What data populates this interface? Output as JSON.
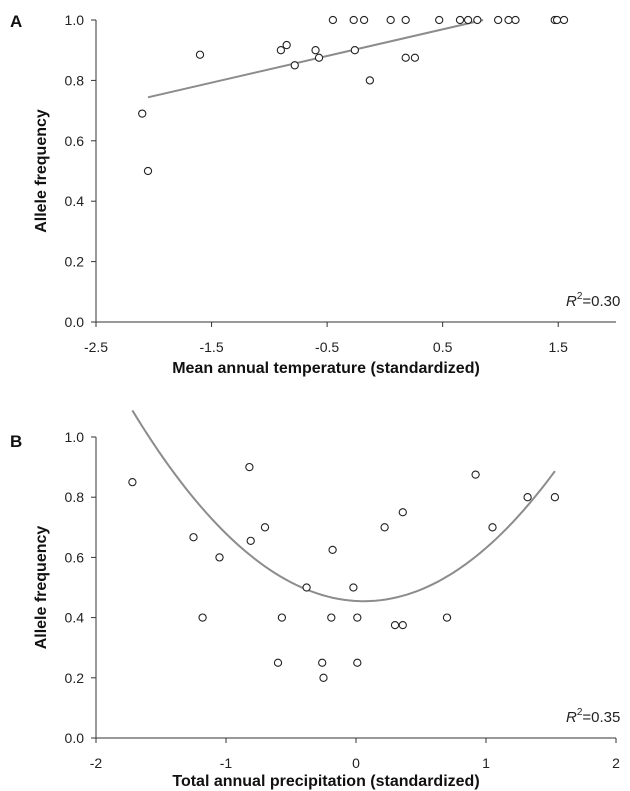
{
  "chart_data": [
    {
      "panel": "A",
      "type": "scatter",
      "xlabel": "Mean annual temperature (standardized)",
      "ylabel": "Allele frequency",
      "xlim": [
        -2.5,
        2.0
      ],
      "ylim": [
        0.0,
        1.0
      ],
      "xticks": [
        -2.5,
        -1.5,
        -0.5,
        0.5,
        1.5
      ],
      "xtick_labels": [
        "-2.5",
        "-1.5",
        "-0.5",
        "0.5",
        "1.5"
      ],
      "yticks": [
        0.0,
        0.2,
        0.4,
        0.6,
        0.8,
        1.0
      ],
      "ytick_labels": [
        "0.0",
        "0.2",
        "0.4",
        "0.6",
        "0.8",
        "1.0"
      ],
      "annotation": {
        "r": "R",
        "sup": "2",
        "value": "=0.30"
      },
      "trendline": {
        "kind": "linear",
        "x": [
          -2.05,
          0.85
        ],
        "y": [
          0.744,
          1.0
        ]
      },
      "points": [
        {
          "x": -2.1,
          "y": 0.69
        },
        {
          "x": -2.05,
          "y": 0.5
        },
        {
          "x": -1.6,
          "y": 0.885
        },
        {
          "x": -0.9,
          "y": 0.9
        },
        {
          "x": -0.85,
          "y": 0.917
        },
        {
          "x": -0.78,
          "y": 0.85
        },
        {
          "x": -0.6,
          "y": 0.9
        },
        {
          "x": -0.57,
          "y": 0.875
        },
        {
          "x": -0.45,
          "y": 1.0
        },
        {
          "x": -0.27,
          "y": 1.0
        },
        {
          "x": -0.26,
          "y": 0.9
        },
        {
          "x": -0.18,
          "y": 1.0
        },
        {
          "x": -0.13,
          "y": 0.8
        },
        {
          "x": 0.05,
          "y": 1.0
        },
        {
          "x": 0.18,
          "y": 1.0
        },
        {
          "x": 0.18,
          "y": 0.875
        },
        {
          "x": 0.26,
          "y": 0.875
        },
        {
          "x": 0.47,
          "y": 1.0
        },
        {
          "x": 0.65,
          "y": 1.0
        },
        {
          "x": 0.72,
          "y": 1.0
        },
        {
          "x": 0.8,
          "y": 1.0
        },
        {
          "x": 0.98,
          "y": 1.0
        },
        {
          "x": 1.07,
          "y": 1.0
        },
        {
          "x": 1.13,
          "y": 1.0
        },
        {
          "x": 1.47,
          "y": 1.0
        },
        {
          "x": 1.49,
          "y": 1.0
        },
        {
          "x": 1.55,
          "y": 1.0
        }
      ]
    },
    {
      "panel": "B",
      "type": "scatter",
      "xlabel": "Total annual precipitation (standardized)",
      "ylabel": "Allele frequency",
      "xlim": [
        -2,
        2
      ],
      "ylim": [
        0.0,
        1.0
      ],
      "xticks": [
        -2,
        -1,
        0,
        1,
        2
      ],
      "xtick_labels": [
        "-2",
        "-1",
        "0",
        "1",
        "2"
      ],
      "yticks": [
        0.0,
        0.2,
        0.4,
        0.6,
        0.8,
        1.0
      ],
      "ytick_labels": [
        "0.0",
        "0.2",
        "0.4",
        "0.6",
        "0.8",
        "1.0"
      ],
      "annotation": {
        "r": "R",
        "sup": "2",
        "value": "=0.35"
      },
      "trendline": {
        "kind": "quadratic",
        "a": 0.2,
        "b": 0.06,
        "c": 0.4545,
        "x_range": [
          -1.72,
          1.53
        ]
      },
      "points": [
        {
          "x": -1.72,
          "y": 0.85
        },
        {
          "x": -1.25,
          "y": 0.667
        },
        {
          "x": -1.18,
          "y": 0.4
        },
        {
          "x": -1.05,
          "y": 0.6
        },
        {
          "x": -0.82,
          "y": 0.9
        },
        {
          "x": -0.81,
          "y": 0.655
        },
        {
          "x": -0.7,
          "y": 0.7
        },
        {
          "x": -0.6,
          "y": 0.25
        },
        {
          "x": -0.57,
          "y": 0.4
        },
        {
          "x": -0.38,
          "y": 0.5
        },
        {
          "x": -0.26,
          "y": 0.25
        },
        {
          "x": -0.25,
          "y": 0.2
        },
        {
          "x": -0.19,
          "y": 0.4
        },
        {
          "x": -0.18,
          "y": 0.625
        },
        {
          "x": -0.02,
          "y": 0.5
        },
        {
          "x": 0.01,
          "y": 0.4
        },
        {
          "x": 0.01,
          "y": 0.25
        },
        {
          "x": 0.22,
          "y": 0.7
        },
        {
          "x": 0.3,
          "y": 0.375
        },
        {
          "x": 0.36,
          "y": 0.375
        },
        {
          "x": 0.36,
          "y": 0.75
        },
        {
          "x": 0.7,
          "y": 0.4
        },
        {
          "x": 0.92,
          "y": 0.875
        },
        {
          "x": 1.05,
          "y": 0.7
        },
        {
          "x": 1.32,
          "y": 0.8
        },
        {
          "x": 1.53,
          "y": 0.8
        }
      ]
    }
  ]
}
